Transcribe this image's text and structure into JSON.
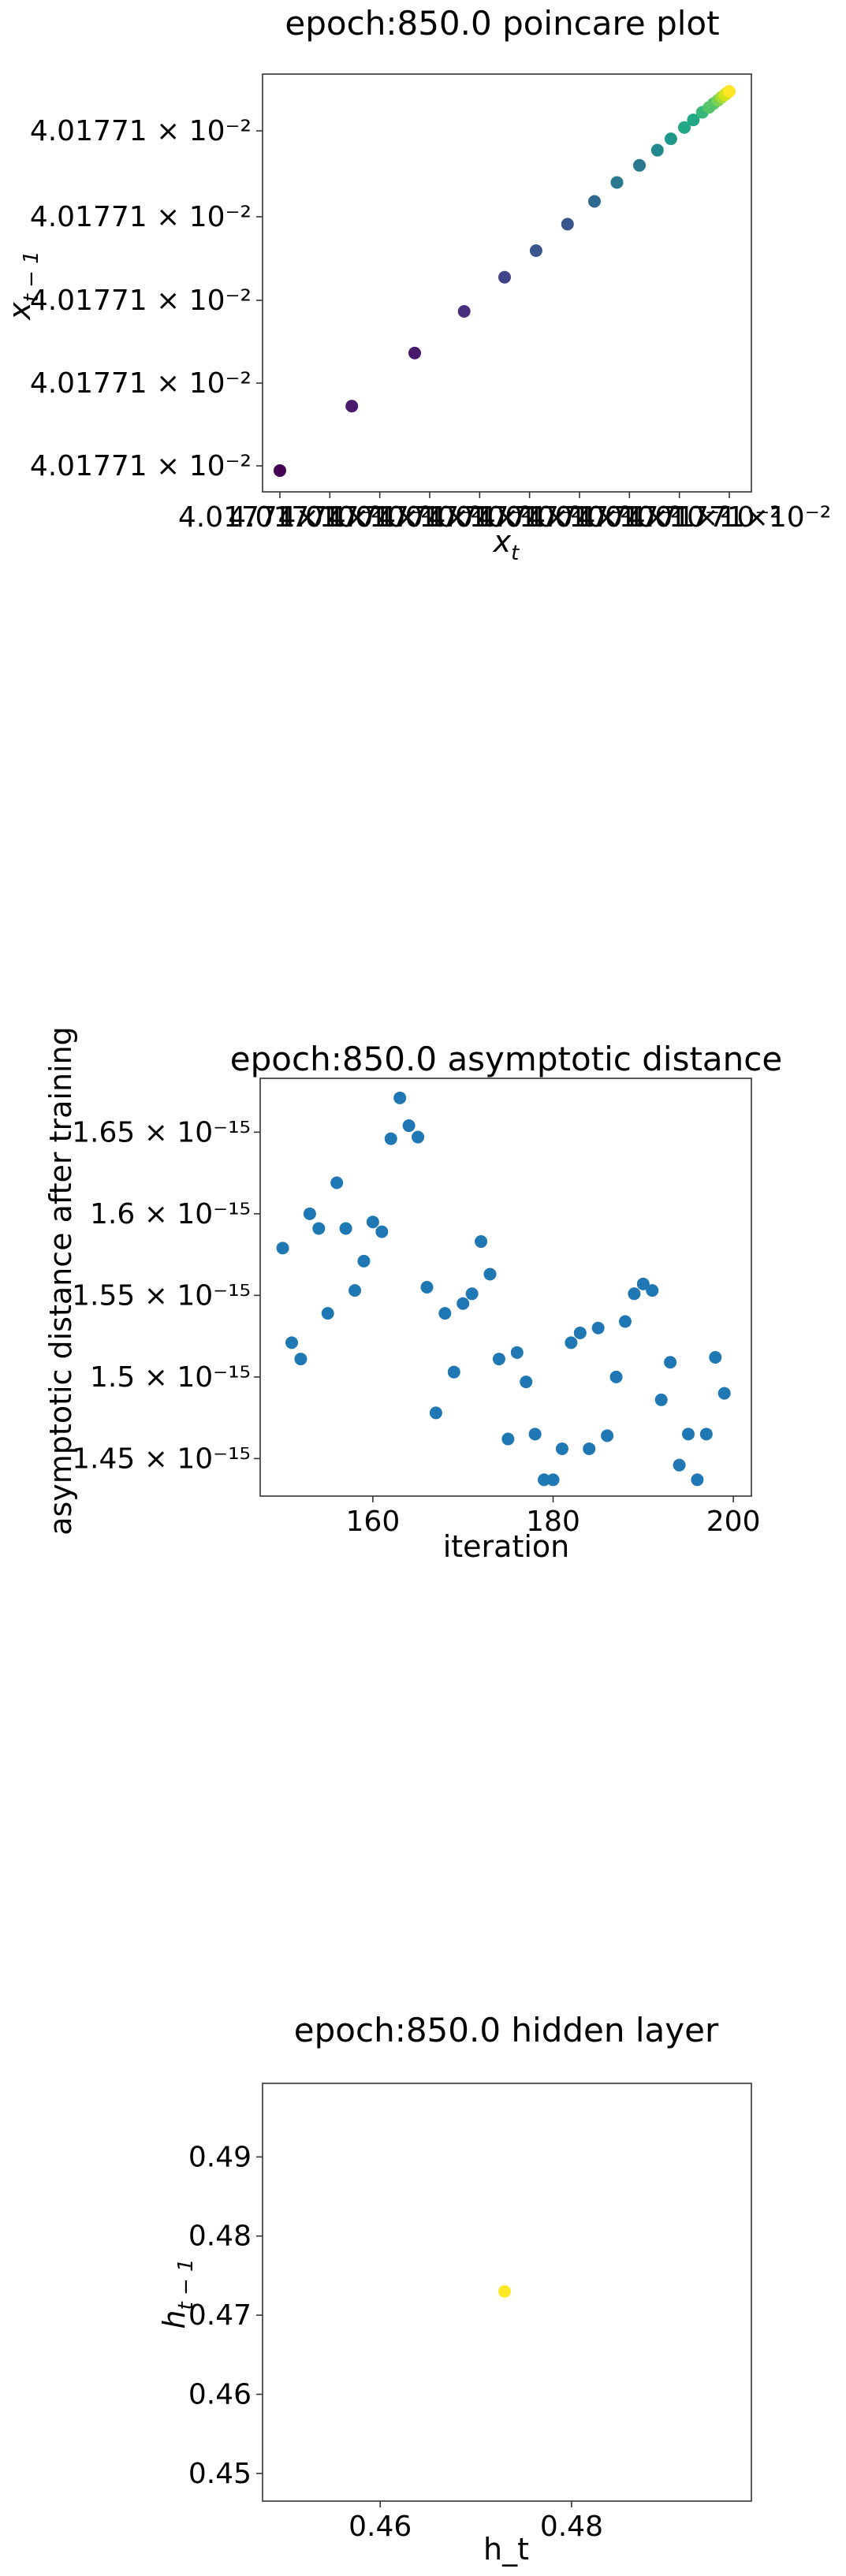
{
  "chart_data": [
    {
      "type": "scatter",
      "title": "epoch:850.0 poincare plot",
      "xlabel": "x_t",
      "ylabel": "x_{t-1}",
      "xlabel_sub": "t",
      "ylabel_sub": "t − 1",
      "xticks": [
        "4.01771×10⁻²",
        "4.01771×10⁻²",
        "4.01771×10⁻²",
        "4.01771×10⁻²",
        "4.01771×10⁻²",
        "4.01771×10⁻²",
        "4.01771×10⁻²",
        "4.01771×10⁻²",
        "4.01771×10⁻²",
        "4.01771×10⁻²"
      ],
      "yticks": [
        "4.01771 × 10⁻²",
        "4.01771 × 10⁻²",
        "4.01771 × 10⁻²",
        "4.01771 × 10⁻²",
        "4.01771 × 10⁻²"
      ],
      "x": [
        0.0,
        0.16,
        0.3,
        0.41,
        0.5,
        0.57,
        0.64,
        0.7,
        0.75,
        0.8,
        0.84,
        0.87,
        0.9,
        0.92,
        0.94,
        0.955,
        0.965,
        0.975,
        0.983,
        0.99,
        0.995,
        1.0
      ],
      "y": [
        0.0,
        0.17,
        0.31,
        0.42,
        0.51,
        0.58,
        0.65,
        0.71,
        0.76,
        0.805,
        0.845,
        0.875,
        0.905,
        0.925,
        0.945,
        0.958,
        0.968,
        0.977,
        0.985,
        0.991,
        0.996,
        1.0
      ],
      "colormap": "viridis",
      "colors": [
        "#440154",
        "#481a6c",
        "#472f7d",
        "#414487",
        "#39568c",
        "#31688e",
        "#2a788e",
        "#23888e",
        "#1f988b",
        "#22a884",
        "#35b779",
        "#54c568",
        "#7ad151",
        "#a5db36",
        "#d2e21b",
        "#fde725"
      ]
    },
    {
      "type": "scatter",
      "title": "epoch:850.0 asymptotic distance",
      "xlabel": "iteration",
      "ylabel": "asymptotic distance after training",
      "xlim": [
        147.5,
        202
      ],
      "ylim": [
        1.427e-15,
        1.683e-15
      ],
      "xticks": [
        160,
        180,
        200
      ],
      "yticks": [
        {
          "value": 1.45e-15,
          "label": "1.45 × 10⁻¹⁵"
        },
        {
          "value": 1.5e-15,
          "label": "1.5 × 10⁻¹⁵"
        },
        {
          "value": 1.55e-15,
          "label": "1.55 × 10⁻¹⁵"
        },
        {
          "value": 1.6e-15,
          "label": "1.6 × 10⁻¹⁵"
        },
        {
          "value": 1.65e-15,
          "label": "1.65 × 10⁻¹⁵"
        }
      ],
      "color": "#1f77b4",
      "x": [
        150,
        151,
        152,
        153,
        154,
        155,
        156,
        157,
        158,
        159,
        160,
        161,
        162,
        163,
        164,
        165,
        166,
        167,
        168,
        169,
        170,
        171,
        172,
        173,
        174,
        175,
        176,
        177,
        178,
        179,
        180,
        181,
        182,
        183,
        184,
        185,
        186,
        187,
        188,
        189,
        190,
        191,
        192,
        193,
        194,
        195,
        196,
        197,
        198,
        199
      ],
      "y": [
        1.579e-15,
        1.521e-15,
        1.511e-15,
        1.6e-15,
        1.591e-15,
        1.539e-15,
        1.619e-15,
        1.591e-15,
        1.553e-15,
        1.571e-15,
        1.595e-15,
        1.589e-15,
        1.646e-15,
        1.671e-15,
        1.654e-15,
        1.647e-15,
        1.555e-15,
        1.478e-15,
        1.539e-15,
        1.503e-15,
        1.545e-15,
        1.551e-15,
        1.583e-15,
        1.563e-15,
        1.511e-15,
        1.462e-15,
        1.515e-15,
        1.497e-15,
        1.465e-15,
        1.437e-15,
        1.437e-15,
        1.456e-15,
        1.521e-15,
        1.527e-15,
        1.456e-15,
        1.53e-15,
        1.464e-15,
        1.5e-15,
        1.534e-15,
        1.551e-15,
        1.557e-15,
        1.553e-15,
        1.486e-15,
        1.509e-15,
        1.446e-15,
        1.465e-15,
        1.437e-15,
        1.465e-15,
        1.512e-15,
        1.49e-15
      ]
    },
    {
      "type": "scatter",
      "title": "epoch:850.0 hidden layer",
      "xlabel": "h_t",
      "ylabel": "h_{t-1}",
      "ylabel_sub": "t − 1",
      "xlim": [
        0.4477,
        0.4988
      ],
      "ylim": [
        0.4465,
        0.4993
      ],
      "xticks": [
        0.46,
        0.48
      ],
      "yticks": [
        0.45,
        0.46,
        0.47,
        0.48,
        0.49
      ],
      "x": [
        0.473
      ],
      "y": [
        0.473
      ],
      "color": "#fde725"
    }
  ]
}
